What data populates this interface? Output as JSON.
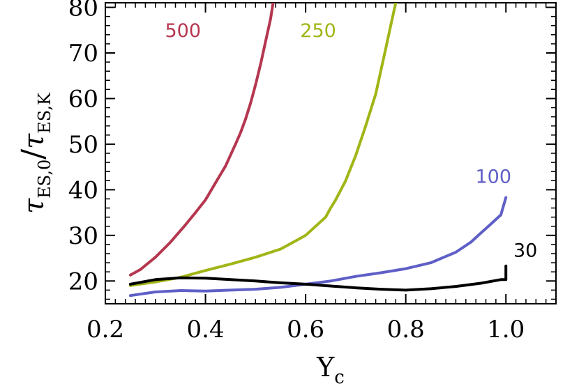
{
  "chart_data": {
    "type": "line",
    "xlabel": {
      "main": "Y",
      "sub": "c"
    },
    "ylabel": {
      "tau": "τ",
      "num_sub": "ES,0",
      "slash": "/",
      "den_sub": "ES,K"
    },
    "xlim": [
      0.2,
      1.1
    ],
    "ylim": [
      15,
      81
    ],
    "xticks": [
      0.2,
      0.4,
      0.6,
      0.8,
      1.0
    ],
    "xtick_labels": [
      "0.2",
      "0.4",
      "0.6",
      "0.8",
      "1.0"
    ],
    "yticks": [
      20,
      30,
      40,
      50,
      60,
      70,
      80
    ],
    "ytick_labels": [
      "20",
      "30",
      "40",
      "50",
      "60",
      "70",
      "80"
    ],
    "grid": false,
    "legend": "none",
    "series": [
      {
        "name": "500",
        "color": "#b5374f",
        "x": [
          0.25,
          0.27,
          0.3,
          0.33,
          0.36,
          0.38,
          0.4,
          0.42,
          0.44,
          0.46,
          0.47,
          0.48,
          0.49,
          0.5,
          0.51,
          0.52,
          0.53,
          0.535
        ],
        "y": [
          21.3,
          22.5,
          25.2,
          28.5,
          32.3,
          35.0,
          37.8,
          41.5,
          45.2,
          50.0,
          52.5,
          55.5,
          59.0,
          63.0,
          67.5,
          72.5,
          77.5,
          81.0
        ]
      },
      {
        "name": "250",
        "color": "#a1b516",
        "x": [
          0.25,
          0.3,
          0.35,
          0.4,
          0.45,
          0.5,
          0.55,
          0.58,
          0.6,
          0.62,
          0.64,
          0.65,
          0.66,
          0.68,
          0.7,
          0.72,
          0.74,
          0.75,
          0.76,
          0.77,
          0.78
        ],
        "y": [
          19.0,
          19.8,
          20.8,
          22.3,
          23.7,
          25.2,
          27.0,
          28.8,
          30.0,
          32.0,
          34.0,
          36.0,
          37.8,
          42.0,
          47.5,
          54.0,
          61.0,
          66.0,
          71.0,
          76.0,
          81.0
        ]
      },
      {
        "name": "100",
        "color": "#5f5fc7",
        "x": [
          0.25,
          0.3,
          0.35,
          0.4,
          0.45,
          0.5,
          0.55,
          0.6,
          0.65,
          0.7,
          0.75,
          0.8,
          0.85,
          0.9,
          0.93,
          0.95,
          0.97,
          0.99,
          1.0
        ],
        "y": [
          16.8,
          17.6,
          17.9,
          17.8,
          18.0,
          18.2,
          18.6,
          19.3,
          20.0,
          21.0,
          21.8,
          22.7,
          24.0,
          26.3,
          28.5,
          30.5,
          32.5,
          34.5,
          38.3
        ]
      },
      {
        "name": "30",
        "color": "#000000",
        "x": [
          0.25,
          0.3,
          0.35,
          0.4,
          0.45,
          0.5,
          0.55,
          0.6,
          0.65,
          0.7,
          0.75,
          0.8,
          0.85,
          0.9,
          0.95,
          0.99,
          1.0,
          1.0
        ],
        "y": [
          19.3,
          20.3,
          20.7,
          20.6,
          20.3,
          20.0,
          19.6,
          19.3,
          18.9,
          18.5,
          18.2,
          18.0,
          18.3,
          18.8,
          19.5,
          20.3,
          20.3,
          23.3
        ]
      }
    ]
  }
}
